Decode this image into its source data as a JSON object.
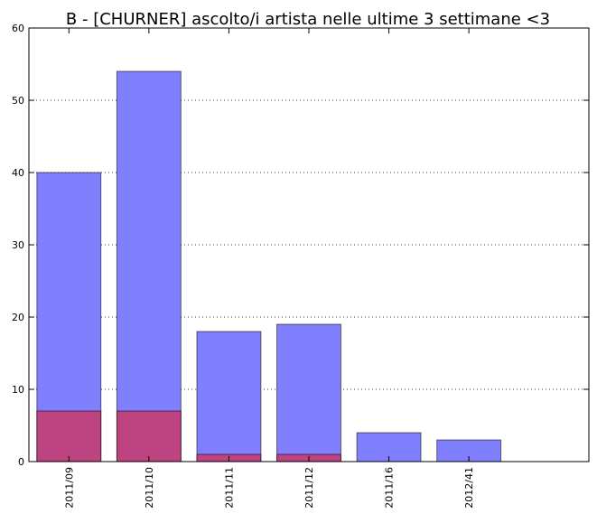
{
  "chart_data": {
    "type": "bar",
    "title": "B - [CHURNER] ascolto/i artista nelle ultime 3 settimane <3",
    "xlabel": "",
    "ylabel": "",
    "categories": [
      "2011/09",
      "2011/10",
      "2011/11",
      "2011/12",
      "2011/16",
      "2012/41"
    ],
    "series": [
      {
        "values": [
          40,
          54,
          18,
          19,
          4,
          3
        ],
        "color": "#8080ff"
      },
      {
        "values": [
          7,
          7,
          1,
          1,
          0,
          0
        ],
        "color": "#c0407a"
      }
    ],
    "ylim": [
      0,
      60
    ],
    "yticks": [
      0,
      10,
      20,
      30,
      40,
      50,
      60
    ],
    "grid": "horizontal-dotted",
    "overlay": true
  }
}
